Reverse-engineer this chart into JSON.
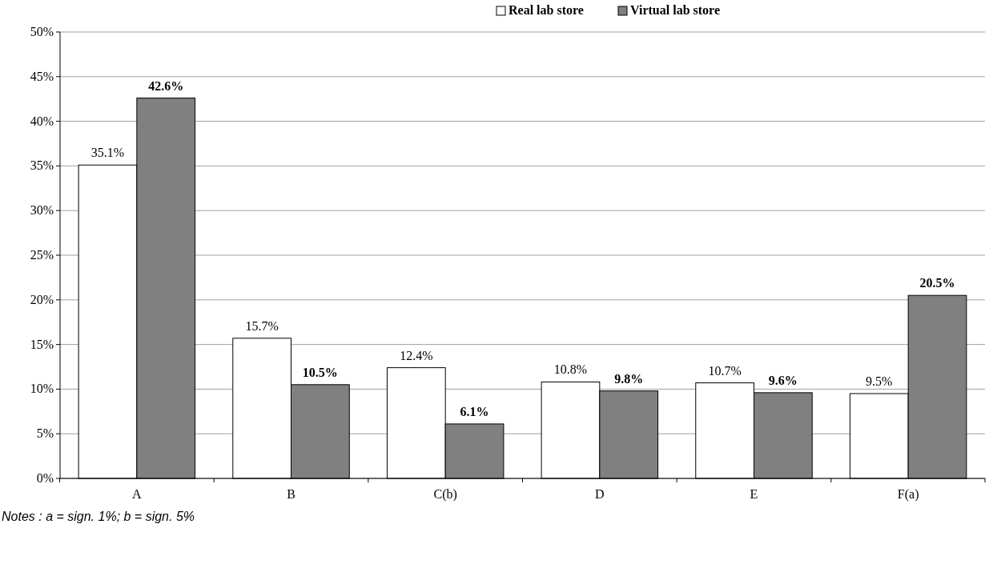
{
  "chart_data": {
    "type": "bar",
    "categories": [
      "A",
      "B",
      "C(b)",
      "D",
      "E",
      "F(a)"
    ],
    "series": [
      {
        "name": "Real lab store",
        "color": "#ffffff",
        "values": [
          35.1,
          15.7,
          12.4,
          10.8,
          10.7,
          9.5
        ],
        "value_labels": [
          "35.1%",
          "15.7%",
          "12.4%",
          "10.8%",
          "10.7%",
          "9.5%"
        ]
      },
      {
        "name": "Virtual lab store",
        "color": "#808080",
        "values": [
          42.6,
          10.5,
          6.1,
          9.8,
          9.6,
          20.5
        ],
        "value_labels": [
          "42.6%",
          "10.5%",
          "6.1%",
          "9.8%",
          "9.6%",
          "20.5%"
        ]
      }
    ],
    "ylim": [
      0,
      50
    ],
    "yticks": [
      {
        "value": 0,
        "label": "0%"
      },
      {
        "value": 5,
        "label": "5%"
      },
      {
        "value": 10,
        "label": "10%"
      },
      {
        "value": 15,
        "label": "15%"
      },
      {
        "value": 20,
        "label": "20%"
      },
      {
        "value": 25,
        "label": "25%"
      },
      {
        "value": 30,
        "label": "30%"
      },
      {
        "value": 35,
        "label": "35%"
      },
      {
        "value": 40,
        "label": "40%"
      },
      {
        "value": 45,
        "label": "45%"
      },
      {
        "value": 50,
        "label": "50%"
      }
    ],
    "grid": "y",
    "legend": "top",
    "annotations": [
      "Notes : a = sign. 1%; b = sign. 5%"
    ]
  }
}
